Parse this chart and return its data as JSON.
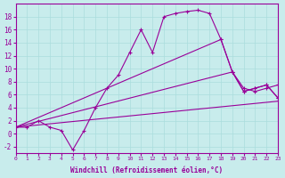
{
  "xlabel": "Windchill (Refroidissement éolien,°C)",
  "background_color": "#c8ecec",
  "line_color": "#990099",
  "grid_color": "#aadddd",
  "xlim": [
    0,
    23
  ],
  "ylim": [
    -3,
    20
  ],
  "xticks": [
    0,
    1,
    2,
    3,
    4,
    5,
    6,
    7,
    8,
    9,
    10,
    11,
    12,
    13,
    14,
    15,
    16,
    17,
    18,
    19,
    20,
    21,
    22,
    23
  ],
  "yticks": [
    -2,
    0,
    2,
    4,
    6,
    8,
    10,
    12,
    14,
    16,
    18
  ],
  "lines": [
    {
      "x": [
        0,
        1,
        2,
        3,
        4,
        5,
        6,
        7,
        8,
        9,
        10,
        11,
        12,
        13,
        14,
        15,
        16,
        17,
        18,
        19,
        20,
        21,
        22,
        23
      ],
      "y": [
        1,
        1,
        2,
        1,
        0.5,
        -2.5,
        0.5,
        4,
        7,
        9,
        12.5,
        16,
        12.5,
        18,
        18.5,
        18.8,
        19,
        18.5,
        14.5,
        9.5,
        6.5,
        7,
        7.5,
        5.5
      ],
      "marker": "+"
    },
    {
      "x": [
        0,
        18,
        19,
        20,
        21,
        22,
        23
      ],
      "y": [
        1,
        14.5,
        9.5,
        6.5,
        7,
        7.5,
        5.5
      ],
      "marker": "+"
    },
    {
      "x": [
        0,
        19,
        20,
        21,
        22,
        23
      ],
      "y": [
        1,
        9.5,
        7,
        6.5,
        7,
        7.5
      ],
      "marker": "+"
    },
    {
      "x": [
        0,
        23
      ],
      "y": [
        1,
        5
      ],
      "marker": null
    }
  ]
}
